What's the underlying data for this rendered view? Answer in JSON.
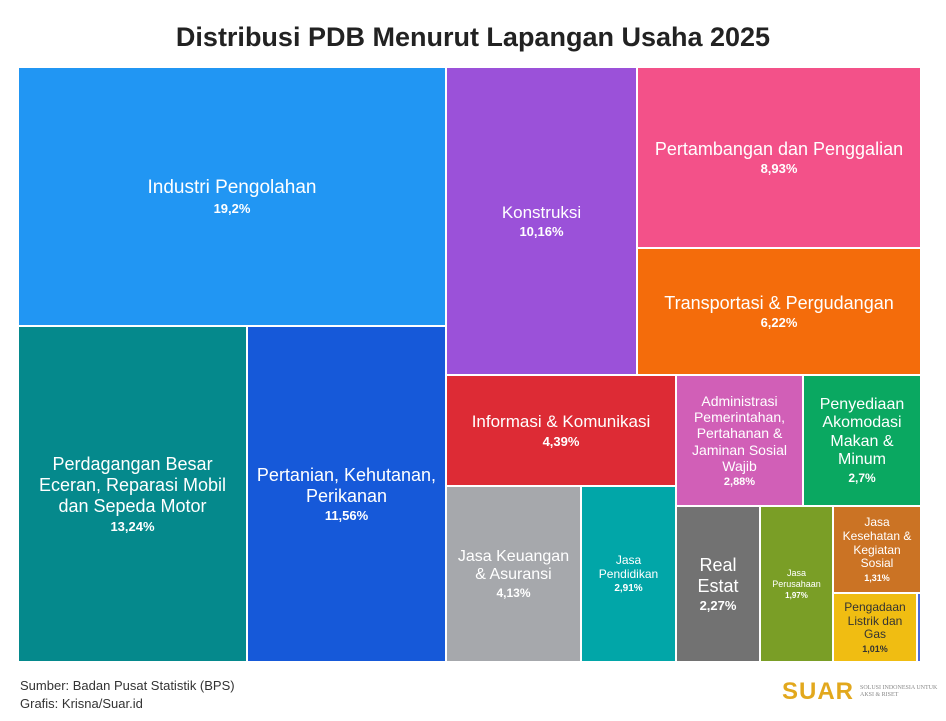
{
  "chart_data": {
    "type": "treemap",
    "title": "Distribusi PDB Menurut Lapangan Usaha 2025",
    "unit": "%",
    "items": [
      {
        "label": "Industri Pengolahan",
        "value_label": "19,2%",
        "value": 19.2,
        "color": "#2196f3"
      },
      {
        "label": "Perdagangan Besar Eceran, Reparasi Mobil dan Sepeda Motor",
        "value_label": "13,24%",
        "value": 13.24,
        "color": "#05898c"
      },
      {
        "label": "Pertanian, Kehutanan, Perikanan",
        "value_label": "11,56%",
        "value": 11.56,
        "color": "#1659d9"
      },
      {
        "label": "Konstruksi",
        "value_label": "10,16%",
        "value": 10.16,
        "color": "#9b51d9"
      },
      {
        "label": "Pertambangan dan Penggalian",
        "value_label": "8,93%",
        "value": 8.93,
        "color": "#f35189"
      },
      {
        "label": "Transportasi & Pergudangan",
        "value_label": "6,22%",
        "value": 6.22,
        "color": "#f46c0b"
      },
      {
        "label": "Informasi & Komunikasi",
        "value_label": "4,39%",
        "value": 4.39,
        "color": "#dd2b35"
      },
      {
        "label": "Administrasi Pemerintahan, Pertahanan & Jaminan Sosial Wajib",
        "value_label": "2,88%",
        "value": 2.88,
        "color": "#d15fb7"
      },
      {
        "label": "Penyediaan Akomodasi Makan & Minum",
        "value_label": "2,7%",
        "value": 2.7,
        "color": "#0aa861"
      },
      {
        "label": "Jasa Keuangan & Asuransi",
        "value_label": "4,13%",
        "value": 4.13,
        "color": "#a6a8ac"
      },
      {
        "label": "Jasa Pendidikan",
        "value_label": "2,91%",
        "value": 2.91,
        "color": "#01a6a8"
      },
      {
        "label": "Real Estat",
        "value_label": "2,27%",
        "value": 2.27,
        "color": "#727272"
      },
      {
        "label": "Jasa Perusahaan",
        "value_label": "1,97%",
        "value": 1.97,
        "color": "#7a9e26"
      },
      {
        "label": "Jasa Kesehatan & Kegiatan Sosial",
        "value_label": "1,31%",
        "value": 1.31,
        "color": "#cb7324"
      },
      {
        "label": "Pengadaan Listrik dan Gas",
        "value_label": "1,01%",
        "value": 1.01,
        "color": "#f0bd12",
        "text_color": "#333333"
      },
      {
        "label": "",
        "value_label": "",
        "color": "#4a6ad8"
      }
    ]
  },
  "footer": {
    "source": "Sumber: Badan Pusat Statistik (BPS)",
    "credit": "Grafis: Krisna/Suar.id",
    "logo_word": "SUAR",
    "logo_tagline": "SOLUSI INDONESIA UNTUK AKSI & RISET"
  }
}
